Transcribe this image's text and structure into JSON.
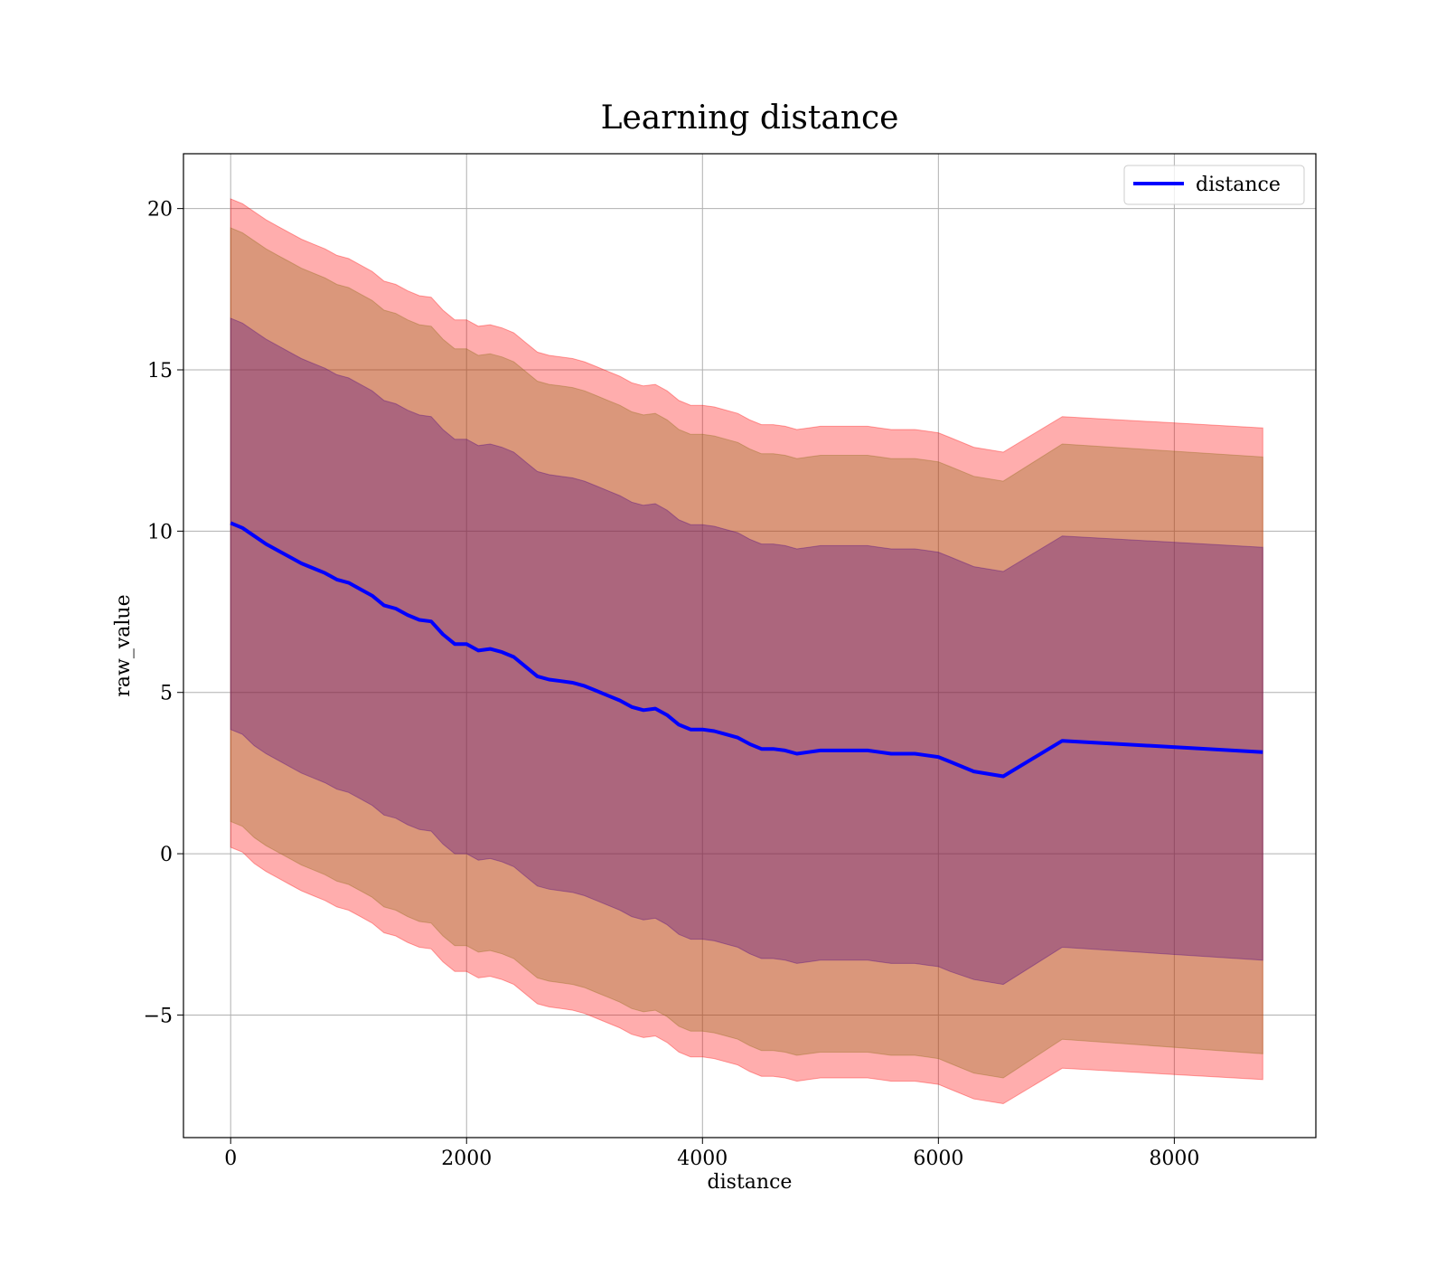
{
  "chart_data": {
    "type": "line",
    "title": "Learning distance",
    "xlabel": "distance",
    "ylabel": "raw_value",
    "xlim": [
      -400,
      9200
    ],
    "ylim": [
      -8.8,
      21.7
    ],
    "xticks": [
      0,
      2000,
      4000,
      6000,
      8000
    ],
    "xtick_labels": [
      "0",
      "2000",
      "4000",
      "6000",
      "8000"
    ],
    "yticks": [
      -5,
      0,
      5,
      10,
      15,
      20
    ],
    "ytick_labels": [
      "−5",
      "0",
      "5",
      "10",
      "15",
      "20"
    ],
    "grid": true,
    "legend": {
      "position": "upper right",
      "entries": [
        "distance"
      ]
    },
    "colors": {
      "line": "#0000ff",
      "band_outer": "#ff0000",
      "band_middle": "#8b6914",
      "band_inner": "#4b0082"
    },
    "series": [
      {
        "name": "distance",
        "x": [
          0,
          100,
          200,
          300,
          400,
          500,
          600,
          700,
          800,
          900,
          1000,
          1100,
          1200,
          1300,
          1400,
          1500,
          1600,
          1700,
          1800,
          1900,
          2000,
          2100,
          2200,
          2300,
          2400,
          2500,
          2600,
          2700,
          2800,
          2900,
          3000,
          3100,
          3200,
          3300,
          3400,
          3500,
          3600,
          3700,
          3800,
          3900,
          4000,
          4100,
          4200,
          4300,
          4400,
          4500,
          4600,
          4700,
          4800,
          4900,
          5000,
          5100,
          5200,
          5300,
          5400,
          5500,
          5600,
          5700,
          5800,
          5900,
          6000,
          6100,
          6300,
          6550,
          7050,
          8750
        ],
        "y": [
          10.25,
          10.1,
          9.85,
          9.6,
          9.4,
          9.2,
          9.0,
          8.85,
          8.7,
          8.5,
          8.4,
          8.2,
          8.0,
          7.7,
          7.6,
          7.4,
          7.25,
          7.2,
          6.8,
          6.5,
          6.5,
          6.3,
          6.35,
          6.25,
          6.1,
          5.8,
          5.5,
          5.4,
          5.35,
          5.3,
          5.2,
          5.05,
          4.9,
          4.75,
          4.55,
          4.45,
          4.5,
          4.3,
          4.0,
          3.85,
          3.85,
          3.8,
          3.7,
          3.6,
          3.4,
          3.25,
          3.25,
          3.2,
          3.1,
          3.15,
          3.2,
          3.2,
          3.2,
          3.2,
          3.2,
          3.15,
          3.1,
          3.1,
          3.1,
          3.05,
          3.0,
          2.85,
          2.55,
          2.4,
          3.5,
          3.15
        ]
      }
    ],
    "bands": [
      {
        "name": "outer",
        "lower": [
          0.2,
          0.05,
          -0.3,
          -0.55,
          -0.75,
          -0.95,
          -1.15,
          -1.3,
          -1.45,
          -1.65,
          -1.75,
          -1.95,
          -2.15,
          -2.45,
          -2.55,
          -2.75,
          -2.9,
          -2.95,
          -3.35,
          -3.65,
          -3.65,
          -3.85,
          -3.8,
          -3.9,
          -4.05,
          -4.35,
          -4.65,
          -4.75,
          -4.8,
          -4.85,
          -4.95,
          -5.1,
          -5.25,
          -5.4,
          -5.6,
          -5.7,
          -5.65,
          -5.85,
          -6.15,
          -6.3,
          -6.3,
          -6.35,
          -6.45,
          -6.55,
          -6.75,
          -6.9,
          -6.9,
          -6.95,
          -7.05,
          -7.0,
          -6.95,
          -6.95,
          -6.95,
          -6.95,
          -6.95,
          -7.0,
          -7.05,
          -7.05,
          -7.05,
          -7.1,
          -7.15,
          -7.3,
          -7.6,
          -7.75,
          -6.65,
          -7.0
        ],
        "upper": [
          20.3,
          20.15,
          19.9,
          19.65,
          19.45,
          19.25,
          19.05,
          18.9,
          18.75,
          18.55,
          18.45,
          18.25,
          18.05,
          17.75,
          17.65,
          17.45,
          17.3,
          17.25,
          16.85,
          16.55,
          16.55,
          16.35,
          16.4,
          16.3,
          16.15,
          15.85,
          15.55,
          15.45,
          15.4,
          15.35,
          15.25,
          15.1,
          14.95,
          14.8,
          14.6,
          14.5,
          14.55,
          14.35,
          14.05,
          13.9,
          13.9,
          13.85,
          13.75,
          13.65,
          13.45,
          13.3,
          13.3,
          13.25,
          13.15,
          13.2,
          13.25,
          13.25,
          13.25,
          13.25,
          13.25,
          13.2,
          13.15,
          13.15,
          13.15,
          13.1,
          13.05,
          12.9,
          12.6,
          12.45,
          13.55,
          13.2
        ]
      },
      {
        "name": "middle",
        "lower": [
          1.0,
          0.85,
          0.5,
          0.25,
          0.05,
          -0.15,
          -0.35,
          -0.5,
          -0.65,
          -0.85,
          -0.95,
          -1.15,
          -1.35,
          -1.65,
          -1.75,
          -1.95,
          -2.1,
          -2.15,
          -2.55,
          -2.85,
          -2.85,
          -3.05,
          -3.0,
          -3.1,
          -3.25,
          -3.55,
          -3.85,
          -3.95,
          -4.0,
          -4.05,
          -4.15,
          -4.3,
          -4.45,
          -4.6,
          -4.8,
          -4.9,
          -4.85,
          -5.05,
          -5.35,
          -5.5,
          -5.5,
          -5.55,
          -5.65,
          -5.75,
          -5.95,
          -6.1,
          -6.1,
          -6.15,
          -6.25,
          -6.2,
          -6.15,
          -6.15,
          -6.15,
          -6.15,
          -6.15,
          -6.2,
          -6.25,
          -6.25,
          -6.25,
          -6.3,
          -6.35,
          -6.5,
          -6.8,
          -6.95,
          -5.75,
          -6.2
        ],
        "upper": [
          19.4,
          19.25,
          19.0,
          18.75,
          18.55,
          18.35,
          18.15,
          18.0,
          17.85,
          17.65,
          17.55,
          17.35,
          17.15,
          16.85,
          16.75,
          16.55,
          16.4,
          16.35,
          15.95,
          15.65,
          15.65,
          15.45,
          15.5,
          15.4,
          15.25,
          14.95,
          14.65,
          14.55,
          14.5,
          14.45,
          14.35,
          14.2,
          14.05,
          13.9,
          13.7,
          13.6,
          13.65,
          13.45,
          13.15,
          13.0,
          13.0,
          12.95,
          12.85,
          12.75,
          12.55,
          12.4,
          12.4,
          12.35,
          12.25,
          12.3,
          12.35,
          12.35,
          12.35,
          12.35,
          12.35,
          12.3,
          12.25,
          12.25,
          12.25,
          12.2,
          12.15,
          12.0,
          11.7,
          11.55,
          12.7,
          12.3
        ]
      },
      {
        "name": "inner",
        "lower": [
          3.85,
          3.7,
          3.35,
          3.1,
          2.9,
          2.7,
          2.5,
          2.35,
          2.2,
          2.0,
          1.9,
          1.7,
          1.5,
          1.2,
          1.1,
          0.9,
          0.75,
          0.7,
          0.3,
          0.0,
          0.0,
          -0.2,
          -0.15,
          -0.25,
          -0.4,
          -0.7,
          -1.0,
          -1.1,
          -1.15,
          -1.2,
          -1.3,
          -1.45,
          -1.6,
          -1.75,
          -1.95,
          -2.05,
          -2.0,
          -2.2,
          -2.5,
          -2.65,
          -2.65,
          -2.7,
          -2.8,
          -2.9,
          -3.1,
          -3.25,
          -3.25,
          -3.3,
          -3.4,
          -3.35,
          -3.3,
          -3.3,
          -3.3,
          -3.3,
          -3.3,
          -3.35,
          -3.4,
          -3.4,
          -3.4,
          -3.45,
          -3.5,
          -3.65,
          -3.9,
          -4.05,
          -2.9,
          -3.3
        ],
        "upper": [
          16.6,
          16.45,
          16.2,
          15.95,
          15.75,
          15.55,
          15.35,
          15.2,
          15.05,
          14.85,
          14.75,
          14.55,
          14.35,
          14.05,
          13.95,
          13.75,
          13.6,
          13.55,
          13.15,
          12.85,
          12.85,
          12.65,
          12.7,
          12.6,
          12.45,
          12.15,
          11.85,
          11.75,
          11.7,
          11.65,
          11.55,
          11.4,
          11.25,
          11.1,
          10.9,
          10.8,
          10.85,
          10.65,
          10.35,
          10.2,
          10.2,
          10.15,
          10.05,
          9.95,
          9.75,
          9.6,
          9.6,
          9.55,
          9.45,
          9.5,
          9.55,
          9.55,
          9.55,
          9.55,
          9.55,
          9.5,
          9.45,
          9.45,
          9.45,
          9.4,
          9.35,
          9.2,
          8.9,
          8.75,
          9.85,
          9.5
        ]
      }
    ]
  }
}
